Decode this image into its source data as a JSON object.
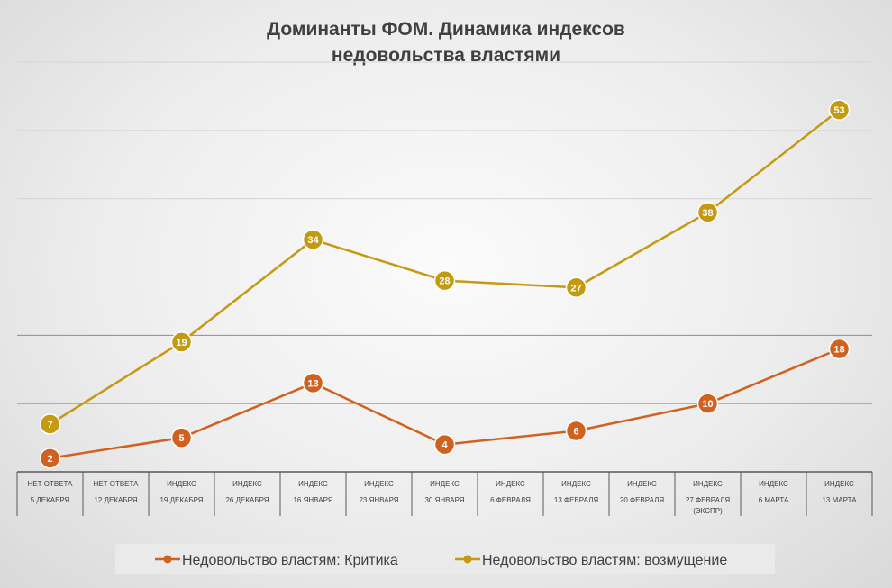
{
  "chart_data": {
    "type": "line",
    "title_line1": "Доминанты ФОМ. Динамика индексов",
    "title_line2": "недовольства властями",
    "categories": [
      [
        "НЕТ ОТВЕТА",
        "5 ДЕКАБРЯ"
      ],
      [
        "НЕТ ОТВЕТА",
        "12 ДЕКАБРЯ"
      ],
      [
        "ИНДЕКС",
        "19 ДЕКАБРЯ"
      ],
      [
        "ИНДЕКС",
        "26 ДЕКАБРЯ"
      ],
      [
        "ИНДЕКС",
        "16 ЯНВАРЯ"
      ],
      [
        "ИНДЕКС",
        "23 ЯНВАРЯ"
      ],
      [
        "ИНДЕКС",
        "30 ЯНВАРЯ"
      ],
      [
        "ИНДЕКС",
        "6 ФЕВРАЛЯ"
      ],
      [
        "ИНДЕКС",
        "13 ФЕВРАЛЯ"
      ],
      [
        "ИНДЕКС",
        "20 ФЕВРАЛЯ"
      ],
      [
        "ИНДЕКС",
        "27 ФЕВРАЛЯ",
        "(ЭКСПР)"
      ],
      [
        "ИНДЕКС",
        "6 МАРТА"
      ],
      [
        "ИНДЕКС",
        "13 МАРТА"
      ]
    ],
    "series": [
      {
        "name": "Недовольство властям:  Критика",
        "color": "#d0611f",
        "points": [
          [
            0,
            2
          ],
          [
            2,
            5
          ],
          [
            4,
            13
          ],
          [
            6,
            4
          ],
          [
            8,
            6
          ],
          [
            10,
            10
          ],
          [
            12,
            18
          ]
        ]
      },
      {
        "name": "Недовольство властям: возмущение",
        "color": "#c49a12",
        "points": [
          [
            0,
            7
          ],
          [
            2,
            19
          ],
          [
            4,
            34
          ],
          [
            6,
            28
          ],
          [
            8,
            27
          ],
          [
            10,
            38
          ],
          [
            12,
            53
          ]
        ]
      }
    ],
    "ylim": [
      0,
      60
    ],
    "grid": true,
    "legend": "bottom"
  }
}
